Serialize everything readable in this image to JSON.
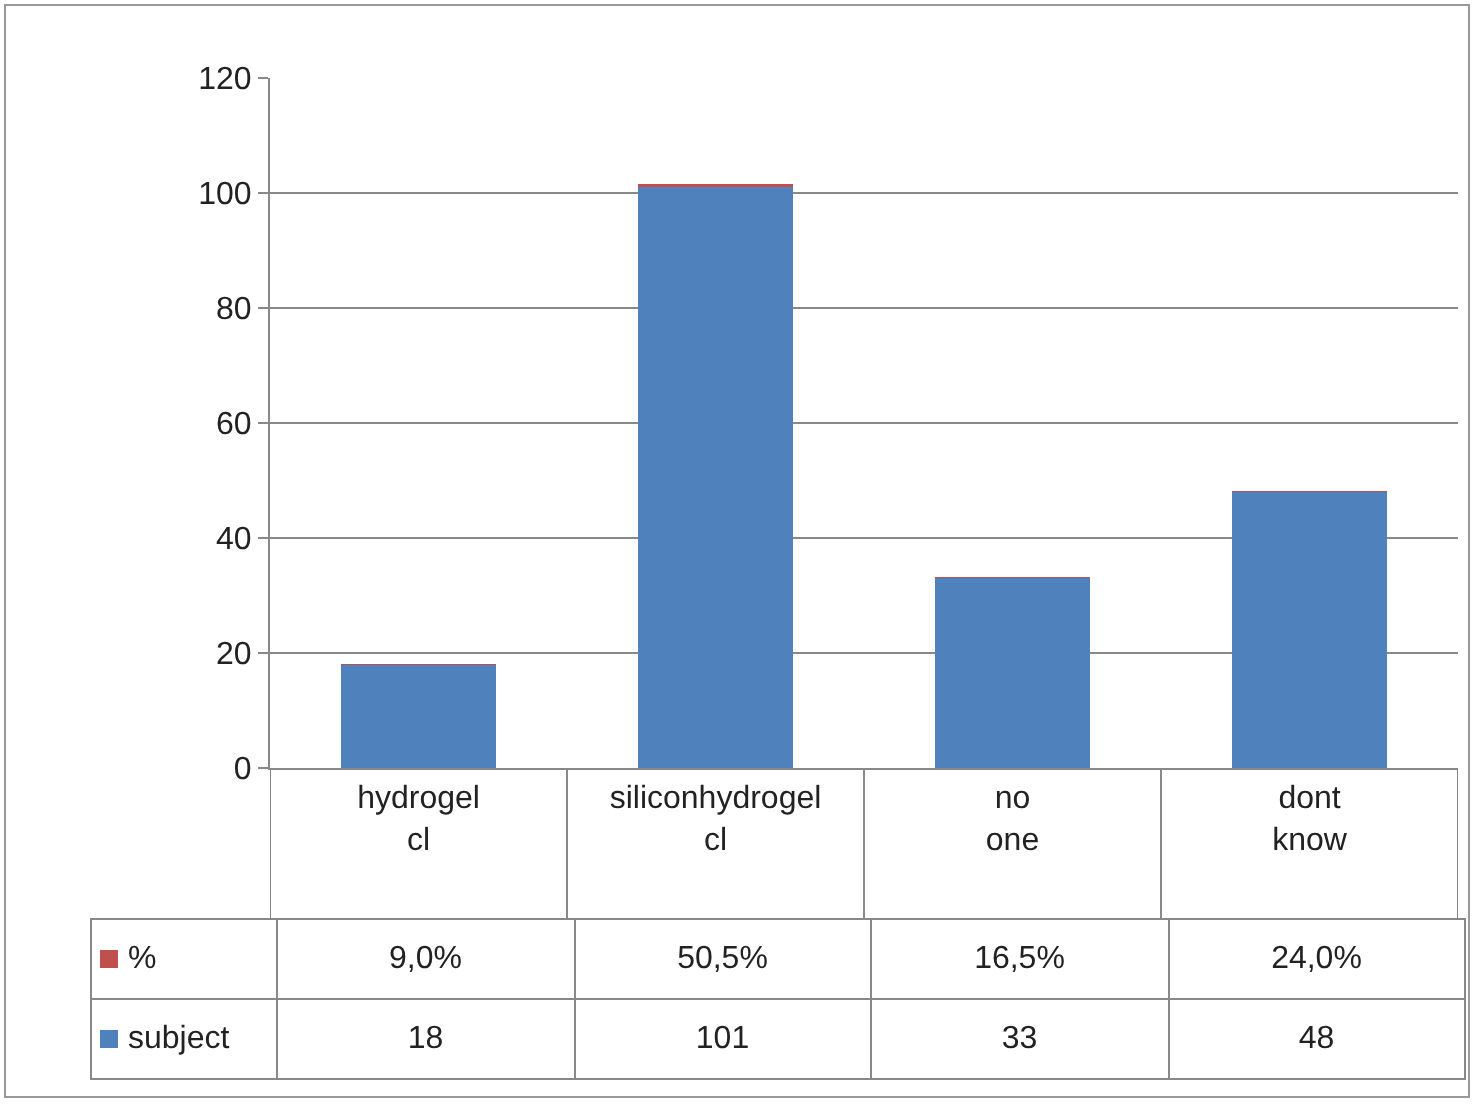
{
  "chart_data": {
    "type": "bar",
    "stacked": true,
    "categories": [
      "hydrogel cl",
      "siliconhydrogel cl",
      "no one",
      "dont know"
    ],
    "series": [
      {
        "name": "subject",
        "color": "#4f81bd",
        "values": [
          18,
          101,
          33,
          48
        ]
      },
      {
        "name": "%",
        "color": "#c0504d",
        "values": [
          0.09,
          0.505,
          0.165,
          0.24
        ],
        "value_labels": [
          "9,0%",
          "50,5%",
          "16,5%",
          "24,0%"
        ]
      }
    ],
    "ylim": [
      0,
      120
    ],
    "yticks": [
      0,
      20,
      40,
      60,
      80,
      100,
      120
    ],
    "grid": "y",
    "legend": "bottom",
    "data_labels": true
  }
}
